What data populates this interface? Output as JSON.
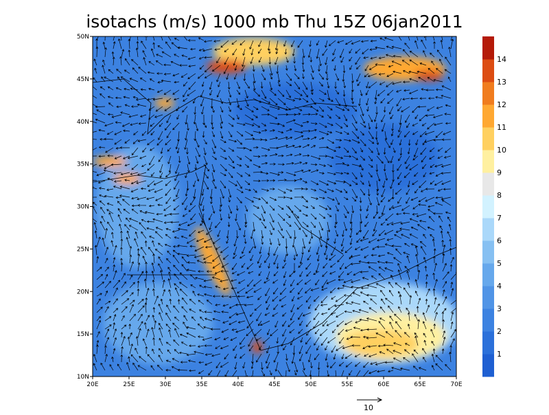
{
  "map": {
    "title": "isotachs (m/s) 1000 mb Thu 15Z 06jan2011",
    "lon_ticks": [
      "20E",
      "25E",
      "30E",
      "35E",
      "40E",
      "45E",
      "50E",
      "55E",
      "60E",
      "65E",
      "70E"
    ],
    "lat_ticks": [
      "10N",
      "15N",
      "20N",
      "25N",
      "30N",
      "35N",
      "40N",
      "45N",
      "50N"
    ],
    "colorbar": {
      "labels": [
        "1",
        "2",
        "3",
        "4",
        "5",
        "6",
        "7",
        "8",
        "9",
        "10",
        "11",
        "12",
        "13",
        "14"
      ],
      "colors": [
        "#1e5fd2",
        "#2b70da",
        "#3c82e1",
        "#5094e6",
        "#66a8ec",
        "#86c0f2",
        "#aad8fa",
        "#d2f2ff",
        "#e8e8e8",
        "#fff0a0",
        "#ffd060",
        "#ffa832",
        "#f07c1e",
        "#dc4c12",
        "#b41a08"
      ]
    },
    "reference_vector": "10"
  }
}
